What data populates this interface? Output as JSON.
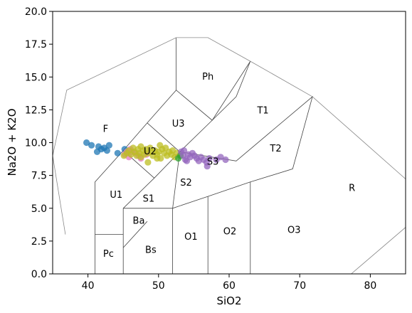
{
  "chart_data": {
    "type": "scatter",
    "title": "",
    "xlabel": "SiO2",
    "ylabel": "Na2O + K2O",
    "xlim": [
      35,
      85
    ],
    "ylim": [
      0,
      20
    ],
    "x_ticks": [
      {
        "value": 40,
        "label": "40"
      },
      {
        "value": 50,
        "label": "50"
      },
      {
        "value": 60,
        "label": "60"
      },
      {
        "value": 70,
        "label": "70"
      },
      {
        "value": 80,
        "label": "80"
      }
    ],
    "y_ticks": [
      {
        "value": 0,
        "label": "0.0"
      },
      {
        "value": 2.5,
        "label": "2.5"
      },
      {
        "value": 5,
        "label": "5.0"
      },
      {
        "value": 7.5,
        "label": "7.5"
      },
      {
        "value": 10,
        "label": "10.0"
      },
      {
        "value": 12.5,
        "label": "12.5"
      },
      {
        "value": 15,
        "label": "15.0"
      },
      {
        "value": 17.5,
        "label": "17.5"
      },
      {
        "value": 20,
        "label": "20.0"
      }
    ],
    "grid": false,
    "legend": "none",
    "field_boundaries": [
      [
        [
          41,
          0
        ],
        [
          41,
          7
        ],
        [
          45,
          9.4
        ],
        [
          48.4,
          11.5
        ],
        [
          52.5,
          14
        ],
        [
          57.6,
          11.7
        ],
        [
          63,
          16.2
        ]
      ],
      [
        [
          41,
          3
        ],
        [
          45,
          3
        ]
      ],
      [
        [
          45,
          0
        ],
        [
          45,
          5
        ],
        [
          49.4,
          7.3
        ],
        [
          53,
          9.3
        ],
        [
          57.6,
          11.7
        ],
        [
          61,
          13.5
        ],
        [
          63,
          16.2
        ]
      ],
      [
        [
          45,
          5
        ],
        [
          52,
          5
        ],
        [
          57,
          5.9
        ],
        [
          63,
          7
        ],
        [
          69,
          8
        ],
        [
          71.8,
          13.5
        ],
        [
          61,
          8.6
        ],
        [
          53,
          9.3
        ],
        [
          52,
          5
        ]
      ],
      [
        [
          52,
          0
        ],
        [
          52,
          5
        ]
      ],
      [
        [
          57,
          0
        ],
        [
          57,
          5.9
        ]
      ],
      [
        [
          63,
          0
        ],
        [
          63,
          7
        ]
      ],
      [
        [
          52.5,
          14
        ],
        [
          52.5,
          18
        ]
      ],
      [
        [
          45,
          2
        ],
        [
          48.4,
          4
        ]
      ],
      [
        [
          48.4,
          11.5
        ],
        [
          53,
          9.3
        ]
      ],
      [
        [
          49.4,
          7.3
        ],
        [
          45,
          9.4
        ]
      ]
    ],
    "outline_boundaries": [
      [
        [
          36.8,
          3
        ],
        [
          35,
          9
        ],
        [
          37,
          14
        ],
        [
          52.5,
          18
        ],
        [
          57,
          18
        ],
        [
          63,
          16.2
        ],
        [
          71.8,
          13.5
        ],
        [
          85.9,
          6.8
        ],
        [
          87.5,
          4.7
        ],
        [
          77.3,
          0
        ]
      ]
    ],
    "field_labels": [
      {
        "text": "Ph",
        "x": 57,
        "y": 15
      },
      {
        "text": "F",
        "x": 42.5,
        "y": 11
      },
      {
        "text": "U3",
        "x": 52.8,
        "y": 11.4
      },
      {
        "text": "T1",
        "x": 64.8,
        "y": 12.4
      },
      {
        "text": "U2",
        "x": 48.8,
        "y": 9.3
      },
      {
        "text": "S3",
        "x": 57.7,
        "y": 8.5
      },
      {
        "text": "T2",
        "x": 66.6,
        "y": 9.5
      },
      {
        "text": "U1",
        "x": 44,
        "y": 6
      },
      {
        "text": "S2",
        "x": 53.9,
        "y": 6.9
      },
      {
        "text": "R",
        "x": 77.4,
        "y": 6.5
      },
      {
        "text": "S1",
        "x": 48.6,
        "y": 5.7
      },
      {
        "text": "Ba",
        "x": 47.2,
        "y": 4
      },
      {
        "text": "Pc",
        "x": 42.9,
        "y": 1.5
      },
      {
        "text": "Bs",
        "x": 48.9,
        "y": 1.8
      },
      {
        "text": "O1",
        "x": 54.6,
        "y": 2.8
      },
      {
        "text": "O2",
        "x": 60.1,
        "y": 3.2
      },
      {
        "text": "O3",
        "x": 69.2,
        "y": 3.3
      }
    ],
    "series": [
      {
        "color": "#1f77b4",
        "points": [
          [
            39.8,
            10
          ],
          [
            40.5,
            9.8
          ],
          [
            41.5,
            9.7
          ],
          [
            41.9,
            9.5
          ],
          [
            42.3,
            9.6
          ],
          [
            42.7,
            9.4
          ],
          [
            43,
            9.8
          ],
          [
            41.3,
            9.3
          ],
          [
            44.2,
            9.2
          ],
          [
            45.2,
            9.5
          ]
        ]
      },
      {
        "color": "#e377c2",
        "points": [
          [
            45.2,
            9.1
          ],
          [
            45.8,
            8.9
          ],
          [
            46.2,
            9.3
          ],
          [
            46.7,
            9.2
          ],
          [
            47.2,
            9
          ],
          [
            47.5,
            8.8
          ],
          [
            48.3,
            9.1
          ],
          [
            46,
            9.5
          ],
          [
            45.5,
            9.3
          ]
        ]
      },
      {
        "color": "#bcbd22",
        "points": [
          [
            45.1,
            9
          ],
          [
            45.5,
            9.2
          ],
          [
            45.8,
            9.4
          ],
          [
            46.1,
            9.1
          ],
          [
            46.4,
            9.6
          ],
          [
            46.6,
            9.3
          ],
          [
            46.9,
            9
          ],
          [
            47.1,
            9.5
          ],
          [
            47.3,
            9.2
          ],
          [
            47.5,
            9.7
          ],
          [
            47.8,
            9.4
          ],
          [
            48,
            9.1
          ],
          [
            48.2,
            9.5
          ],
          [
            48.5,
            9.2
          ],
          [
            48.8,
            9.6
          ],
          [
            49,
            9.3
          ],
          [
            49.2,
            9
          ],
          [
            49.5,
            9.4
          ],
          [
            49.8,
            9.1
          ],
          [
            50,
            9.3
          ],
          [
            50.3,
            8.8
          ],
          [
            50.5,
            9.5
          ],
          [
            50.8,
            9.2
          ],
          [
            51,
            9.6
          ],
          [
            51.2,
            9
          ],
          [
            51.5,
            9.3
          ],
          [
            51.8,
            9.1
          ],
          [
            52,
            9.4
          ],
          [
            52.3,
            8.9
          ],
          [
            52.6,
            9.2
          ],
          [
            48.5,
            8.5
          ],
          [
            49.8,
            8.8
          ],
          [
            47.5,
            8.9
          ],
          [
            50.2,
            9.8
          ]
        ]
      },
      {
        "color": "#2ca02c",
        "points": [
          [
            52.8,
            8.8
          ],
          [
            53.1,
            9
          ]
        ]
      },
      {
        "color": "#9467bd",
        "points": [
          [
            53.2,
            9.3
          ],
          [
            53.5,
            9
          ],
          [
            53.8,
            8.7
          ],
          [
            54.2,
            9.1
          ],
          [
            54.5,
            8.9
          ],
          [
            54.8,
            9.2
          ],
          [
            55.1,
            9
          ],
          [
            55.4,
            8.8
          ],
          [
            55.7,
            8.6
          ],
          [
            56,
            8.9
          ],
          [
            56.4,
            8.7
          ],
          [
            56.8,
            8.5
          ],
          [
            57.2,
            8.8
          ],
          [
            58.2,
            8.7
          ],
          [
            58.8,
            8.9
          ],
          [
            59.5,
            8.7
          ],
          [
            53.6,
            9.4
          ],
          [
            54,
            8.6
          ],
          [
            56.9,
            8.2
          ]
        ]
      }
    ]
  }
}
